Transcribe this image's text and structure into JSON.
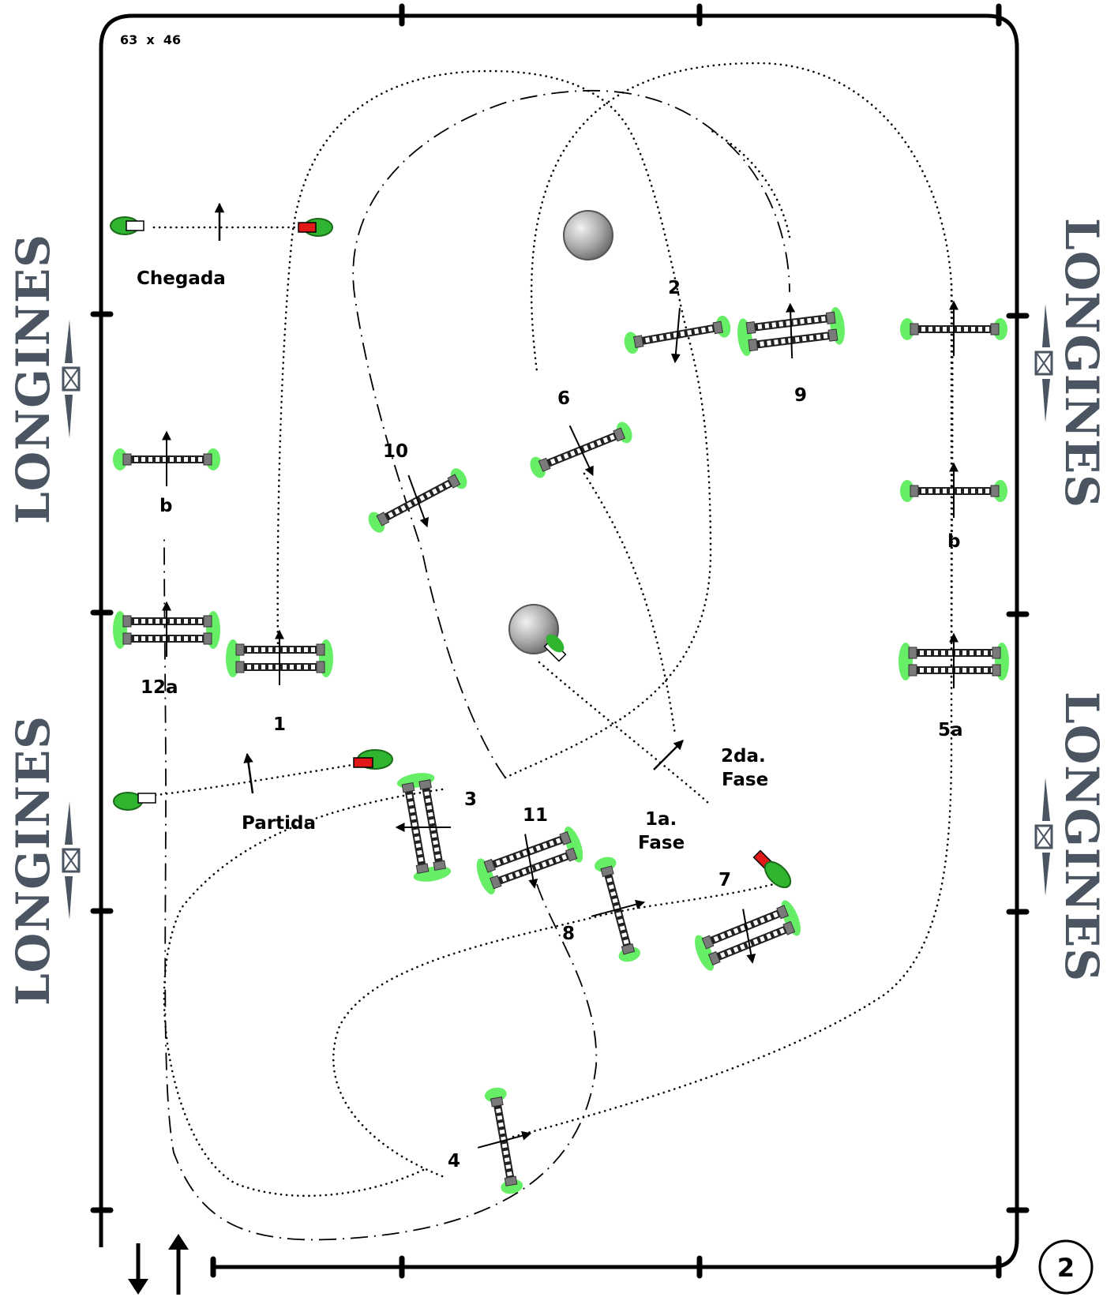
{
  "arena": {
    "size_label": "63  x  46"
  },
  "sponsor": {
    "name": "LONGINES",
    "logo_color": "#4a5561"
  },
  "page_number": "2",
  "labels": {
    "finish": "Chegada",
    "start": "Partida",
    "phase1_line1": "1a.",
    "phase1_line2": "Fase",
    "phase2_line1": "2da.",
    "phase2_line2": "Fase"
  },
  "obstacles": [
    {
      "id": "1",
      "label": "1"
    },
    {
      "id": "2",
      "label": "2"
    },
    {
      "id": "3",
      "label": "3"
    },
    {
      "id": "4",
      "label": "4"
    },
    {
      "id": "5a",
      "label": "5a"
    },
    {
      "id": "5b",
      "label": "b"
    },
    {
      "id": "6",
      "label": "6"
    },
    {
      "id": "7",
      "label": "7"
    },
    {
      "id": "8",
      "label": "8"
    },
    {
      "id": "9",
      "label": "9"
    },
    {
      "id": "10",
      "label": "10"
    },
    {
      "id": "11",
      "label": "11"
    },
    {
      "id": "12a",
      "label": "12a"
    },
    {
      "id": "12b",
      "label": "b"
    }
  ],
  "colors": {
    "flag_red": "#e01818",
    "flag_white": "#ffffff",
    "shrub_green": "#2fb52f",
    "jump_green": "#66ee66",
    "post_gray": "#7a7a7a",
    "ball_gray": "#a8a8a8"
  }
}
